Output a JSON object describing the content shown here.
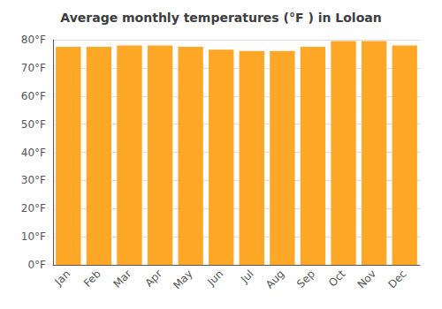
{
  "chart_data": {
    "type": "bar",
    "title": "Average monthly temperatures (°F ) in Loloan",
    "categories": [
      "Jan",
      "Feb",
      "Mar",
      "Apr",
      "May",
      "Jun",
      "Jul",
      "Aug",
      "Sep",
      "Oct",
      "Nov",
      "Dec"
    ],
    "values": [
      77.5,
      77.5,
      78.0,
      78.0,
      77.5,
      76.5,
      76.0,
      76.0,
      77.5,
      79.5,
      79.5,
      78.0
    ],
    "color": "#FFA726",
    "ylim": [
      0,
      80
    ],
    "yticks": [
      {
        "value": 0,
        "label": "0°F"
      },
      {
        "value": 10,
        "label": "10°F"
      },
      {
        "value": 20,
        "label": "20°F"
      },
      {
        "value": 30,
        "label": "30°F"
      },
      {
        "value": 40,
        "label": "40°F"
      },
      {
        "value": 50,
        "label": "50°F"
      },
      {
        "value": 60,
        "label": "60°F"
      },
      {
        "value": 70,
        "label": "70°F"
      },
      {
        "value": 80,
        "label": "80°F"
      }
    ],
    "grid": true
  }
}
